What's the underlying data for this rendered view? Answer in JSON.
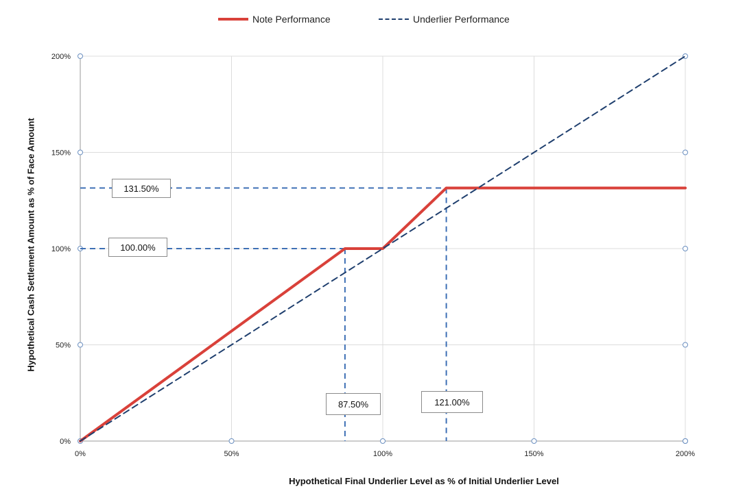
{
  "chart_data": {
    "type": "line",
    "xlabel": "Hypothetical Final Underlier Level as % of Initial Underlier Level",
    "ylabel": "Hypothetical Cash Settlement Amount as % of Face Amount",
    "xlim": [
      0,
      200
    ],
    "ylim": [
      0,
      200
    ],
    "x_ticks": [
      "0%",
      "50%",
      "100%",
      "150%",
      "200%"
    ],
    "y_ticks": [
      "0%",
      "50%",
      "100%",
      "150%",
      "200%"
    ],
    "grid": true,
    "legend_position": "top",
    "series": [
      {
        "name": "Note Performance",
        "style": "solid",
        "color": "#d9413a",
        "x": [
          0,
          87.5,
          100,
          121,
          200
        ],
        "y": [
          0,
          100,
          100,
          131.5,
          131.5
        ]
      },
      {
        "name": "Underlier Performance",
        "style": "dashed",
        "color": "#1f3f6e",
        "x": [
          0,
          200
        ],
        "y": [
          0,
          200
        ]
      }
    ],
    "annotations": [
      {
        "label": "131.50%",
        "axis": "y",
        "value": 131.5
      },
      {
        "label": "100.00%",
        "axis": "y",
        "value": 100
      },
      {
        "label": "87.50%",
        "axis": "x",
        "value": 87.5
      },
      {
        "label": "121.00%",
        "axis": "x",
        "value": 121
      }
    ],
    "reference_line_color": "#3d6fb4"
  }
}
